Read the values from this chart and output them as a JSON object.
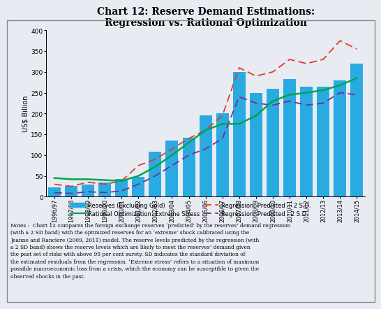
{
  "title": "Chart 12: Reserve Demand Estimations:\nRegression vs. Rational Optimization",
  "ylabel": "US$ Billion",
  "categories": [
    "1996/97",
    "1997/98",
    "1998/99",
    "1999/00",
    "2000/01",
    "2001/02",
    "2002/03",
    "2003/04",
    "2004/05",
    "2005/06",
    "2006/07",
    "2007/08",
    "2008/09",
    "2009/10",
    "2010/11",
    "2011/12",
    "2012/13",
    "2013/14",
    "2014/15"
  ],
  "bar_values": [
    22,
    26,
    30,
    35,
    42,
    48,
    108,
    135,
    142,
    195,
    200,
    300,
    250,
    260,
    283,
    265,
    265,
    280,
    320
  ],
  "bar_color": "#29ABE2",
  "reg_plus2": [
    30,
    25,
    35,
    30,
    38,
    75,
    90,
    115,
    140,
    160,
    195,
    310,
    290,
    300,
    330,
    320,
    330,
    375,
    355
  ],
  "reg_minus2": [
    10,
    8,
    12,
    10,
    14,
    30,
    50,
    75,
    100,
    115,
    140,
    240,
    225,
    220,
    230,
    220,
    225,
    250,
    245
  ],
  "rat_opt": [
    45,
    42,
    42,
    40,
    38,
    50,
    72,
    100,
    130,
    160,
    175,
    175,
    195,
    230,
    245,
    250,
    256,
    268,
    285
  ],
  "reg_plus_color": "#E8392A",
  "reg_minus_color": "#7B2D8B",
  "rat_opt_color": "#00A550",
  "ylim": [
    0,
    400
  ],
  "yticks": [
    0,
    50,
    100,
    150,
    200,
    250,
    300,
    350,
    400
  ],
  "bg_color": "#E8EBF2",
  "title_fontsize": 10,
  "legend_labels": [
    "Reserves (Excluding Gold)",
    "Rational Optimization: Extreme Stress",
    "Regression: Predicted + 2 S.D.",
    "Regression: Predicted - 2 S.D."
  ],
  "notes_text": "Notes :  Chart 12 compares the foreign exchange reserves ‘predicted’ by the reserves’ demand regression\n(with a 2 SD band) with the optimized reserves for an ‘extreme’ shock calibrated using the\nJeanne and Ranciere (2009, 2011) model. The reserve levels predicted by the regression (with\na 2 SD band) shows the reserve levels which are likely to meet the reserves’ demand given\nthe past set of risks with above 95 per cent surety. SD indicates the standard deviation of\nthe estimated residuals from the regression. ‘Extreme stress’ refers to a situation of maximum\npossible macroeconomic loss from a crisis, which the economy can be susceptible to given the\nobserved shocks in the past."
}
